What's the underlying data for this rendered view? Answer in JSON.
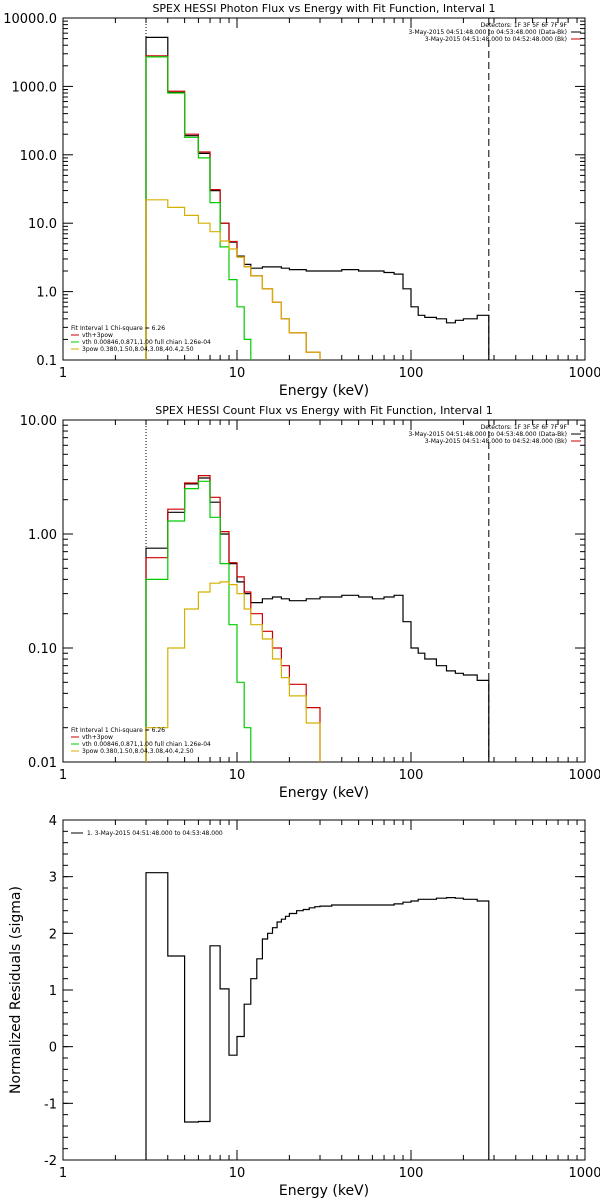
{
  "chart_data": [
    {
      "type": "line",
      "title": "SPEX HESSI Photon Flux vs Energy with Fit Function, Interval 1",
      "xlabel": "Energy (keV)",
      "ylabel": "",
      "x_scale": "log",
      "y_scale": "log",
      "xlim": [
        1,
        1000
      ],
      "ylim": [
        0.1,
        10000
      ],
      "x_ticks": [
        "1",
        "10",
        "100",
        "1000"
      ],
      "y_ticks": [
        "0.1",
        "1.0",
        "10.0",
        "100.0",
        "1000.0",
        "10000.0"
      ],
      "legend_right": [
        {
          "text": "Detectors: 1F 3F 5F 6F 7F 9F",
          "color": "#000000"
        },
        {
          "text": "3-May-2015 04:51:48.000 to 04:53:48.000 (Data-Bk)",
          "color": "#000000"
        },
        {
          "text": "3-May-2015 04:51:48.000 to 04:52:48.000 (Bk)",
          "color": "#cc0000"
        }
      ],
      "legend_left": [
        {
          "text": "Fit Interval 1   Chi-square = 6.26",
          "color": "#000000"
        },
        {
          "text": "vth+3pow",
          "color": "#cc0000"
        },
        {
          "text": "vth 0.00846,0.871,1.00  full chian 1.26e-04",
          "color": "#00cc00"
        },
        {
          "text": "3pow 0.380,1.50,8.04,3.08,40.4,2.50",
          "color": "#d4b000"
        }
      ],
      "ref_lines_x": [
        3,
        280
      ],
      "series": [
        {
          "color": "#000000",
          "edges": [
            3,
            4,
            5,
            6,
            7,
            8,
            9,
            10,
            11,
            12,
            14,
            16,
            18,
            20,
            25,
            30,
            40,
            50,
            60,
            70,
            80,
            90,
            100,
            110,
            120,
            140,
            160,
            180,
            200,
            240,
            280
          ],
          "values": [
            5200,
            820,
            190,
            105,
            30,
            10,
            5.3,
            3.3,
            2.5,
            2.2,
            2.3,
            2.3,
            2.2,
            2.1,
            2.0,
            2.0,
            2.1,
            2.0,
            2.0,
            1.9,
            1.8,
            1.1,
            0.6,
            0.45,
            0.42,
            0.4,
            0.35,
            0.38,
            0.4,
            0.45
          ]
        },
        {
          "color": "#cc0000",
          "edges": [
            3,
            4,
            5,
            6,
            7,
            8,
            9,
            10,
            11,
            12,
            14,
            16,
            18,
            20,
            25,
            30
          ],
          "values": [
            2800,
            850,
            200,
            110,
            31,
            10,
            5.4,
            3.2,
            2.3,
            1.7,
            1.1,
            0.7,
            0.4,
            0.25,
            0.13
          ]
        },
        {
          "color": "#00cc00",
          "edges": [
            3,
            4,
            5,
            6,
            7,
            8,
            9,
            10,
            11,
            12
          ],
          "values": [
            2700,
            800,
            180,
            90,
            20,
            4.5,
            1.5,
            0.6,
            0.2
          ]
        },
        {
          "color": "#d4b000",
          "edges": [
            3,
            4,
            5,
            6,
            7,
            8,
            9,
            10,
            11,
            12,
            14,
            16,
            18,
            20,
            25,
            30
          ],
          "values": [
            22,
            17,
            13,
            10,
            7.5,
            5.5,
            4.2,
            3.2,
            2.3,
            1.7,
            1.1,
            0.7,
            0.4,
            0.25,
            0.13
          ]
        }
      ]
    },
    {
      "type": "line",
      "title": "SPEX HESSI Count Flux vs Energy with Fit Function, Interval 1",
      "xlabel": "Energy (keV)",
      "ylabel": "",
      "x_scale": "log",
      "y_scale": "log",
      "xlim": [
        1,
        1000
      ],
      "ylim": [
        0.01,
        10
      ],
      "x_ticks": [
        "1",
        "10",
        "100",
        "1000"
      ],
      "y_ticks": [
        "0.01",
        "0.10",
        "1.00",
        "10.00"
      ],
      "legend_right": [
        {
          "text": "Detectors: 1F 3F 5F 6F 7F 9F",
          "color": "#000000"
        },
        {
          "text": "3-May-2015 04:51:48.000 to 04:53:48.000 (Data-Bk)",
          "color": "#000000"
        },
        {
          "text": "3-May-2015 04:51:48.000 to 04:52:48.000 (Bk)",
          "color": "#cc0000"
        }
      ],
      "legend_left": [
        {
          "text": "Fit Interval 1   Chi-square = 6.26",
          "color": "#000000"
        },
        {
          "text": "vth+3pow",
          "color": "#cc0000"
        },
        {
          "text": "vth 0.00846,0.871,1.00  full chian 1.26e-04",
          "color": "#00cc00"
        },
        {
          "text": "3pow 0.380,1.50,8.04,3.08,40.4,2.50",
          "color": "#d4b000"
        }
      ],
      "ref_lines_x": [
        3,
        280
      ],
      "series": [
        {
          "color": "#000000",
          "edges": [
            3,
            4,
            5,
            6,
            7,
            8,
            9,
            10,
            11,
            12,
            14,
            16,
            18,
            20,
            25,
            30,
            40,
            50,
            60,
            70,
            80,
            90,
            100,
            110,
            120,
            140,
            160,
            180,
            200,
            240,
            280
          ],
          "values": [
            0.75,
            1.55,
            2.75,
            3.1,
            1.9,
            1.0,
            0.55,
            0.38,
            0.3,
            0.25,
            0.27,
            0.28,
            0.27,
            0.26,
            0.27,
            0.28,
            0.29,
            0.28,
            0.27,
            0.28,
            0.29,
            0.17,
            0.1,
            0.09,
            0.08,
            0.07,
            0.063,
            0.06,
            0.058,
            0.052
          ]
        },
        {
          "color": "#cc0000",
          "edges": [
            3,
            4,
            5,
            6,
            7,
            8,
            9,
            10,
            11,
            12,
            14,
            16,
            18,
            20,
            25,
            30
          ],
          "values": [
            0.62,
            1.65,
            2.8,
            3.25,
            2.1,
            1.05,
            0.56,
            0.42,
            0.31,
            0.2,
            0.14,
            0.1,
            0.07,
            0.048,
            0.03
          ]
        },
        {
          "color": "#00cc00",
          "edges": [
            3,
            4,
            5,
            6,
            7,
            8,
            9,
            10,
            11,
            12
          ],
          "values": [
            0.4,
            1.3,
            2.5,
            2.9,
            1.4,
            0.55,
            0.16,
            0.05,
            0.02
          ]
        },
        {
          "color": "#d4b000",
          "edges": [
            3,
            4,
            5,
            6,
            7,
            8,
            9,
            10,
            11,
            12,
            14,
            16,
            18,
            20,
            25,
            30
          ],
          "values": [
            0.02,
            0.1,
            0.22,
            0.31,
            0.37,
            0.38,
            0.36,
            0.3,
            0.22,
            0.16,
            0.12,
            0.08,
            0.055,
            0.038,
            0.022
          ]
        }
      ]
    },
    {
      "type": "line",
      "title": "",
      "xlabel": "Energy (keV)",
      "ylabel": "Normalized Residuals (sigma)",
      "x_scale": "log",
      "y_scale": "linear",
      "xlim": [
        1,
        1000
      ],
      "ylim": [
        -2,
        4
      ],
      "x_ticks": [
        "1",
        "10",
        "100",
        "1000"
      ],
      "y_ticks": [
        "-2",
        "-1",
        "0",
        "1",
        "2",
        "3",
        "4"
      ],
      "legend_left": [
        {
          "text": "1.  3-May-2015 04:51:48.000 to 04:53:48.000",
          "color": "#000000"
        }
      ],
      "series": [
        {
          "color": "#000000",
          "edges": [
            3,
            4,
            5,
            6,
            7,
            8,
            9,
            10,
            11,
            12,
            13,
            14,
            15,
            16,
            17,
            18,
            19,
            20,
            22,
            24,
            26,
            28,
            30,
            35,
            40,
            50,
            60,
            70,
            80,
            90,
            100,
            110,
            120,
            140,
            160,
            180,
            200,
            240,
            280
          ],
          "values": [
            3.07,
            1.6,
            -1.33,
            -1.32,
            1.78,
            1.02,
            -0.15,
            0.18,
            0.75,
            1.2,
            1.55,
            1.9,
            2.0,
            2.1,
            2.2,
            2.25,
            2.3,
            2.35,
            2.4,
            2.42,
            2.45,
            2.47,
            2.48,
            2.5,
            2.5,
            2.5,
            2.5,
            2.5,
            2.52,
            2.55,
            2.57,
            2.6,
            2.6,
            2.62,
            2.63,
            2.62,
            2.6,
            2.57
          ]
        }
      ]
    }
  ]
}
